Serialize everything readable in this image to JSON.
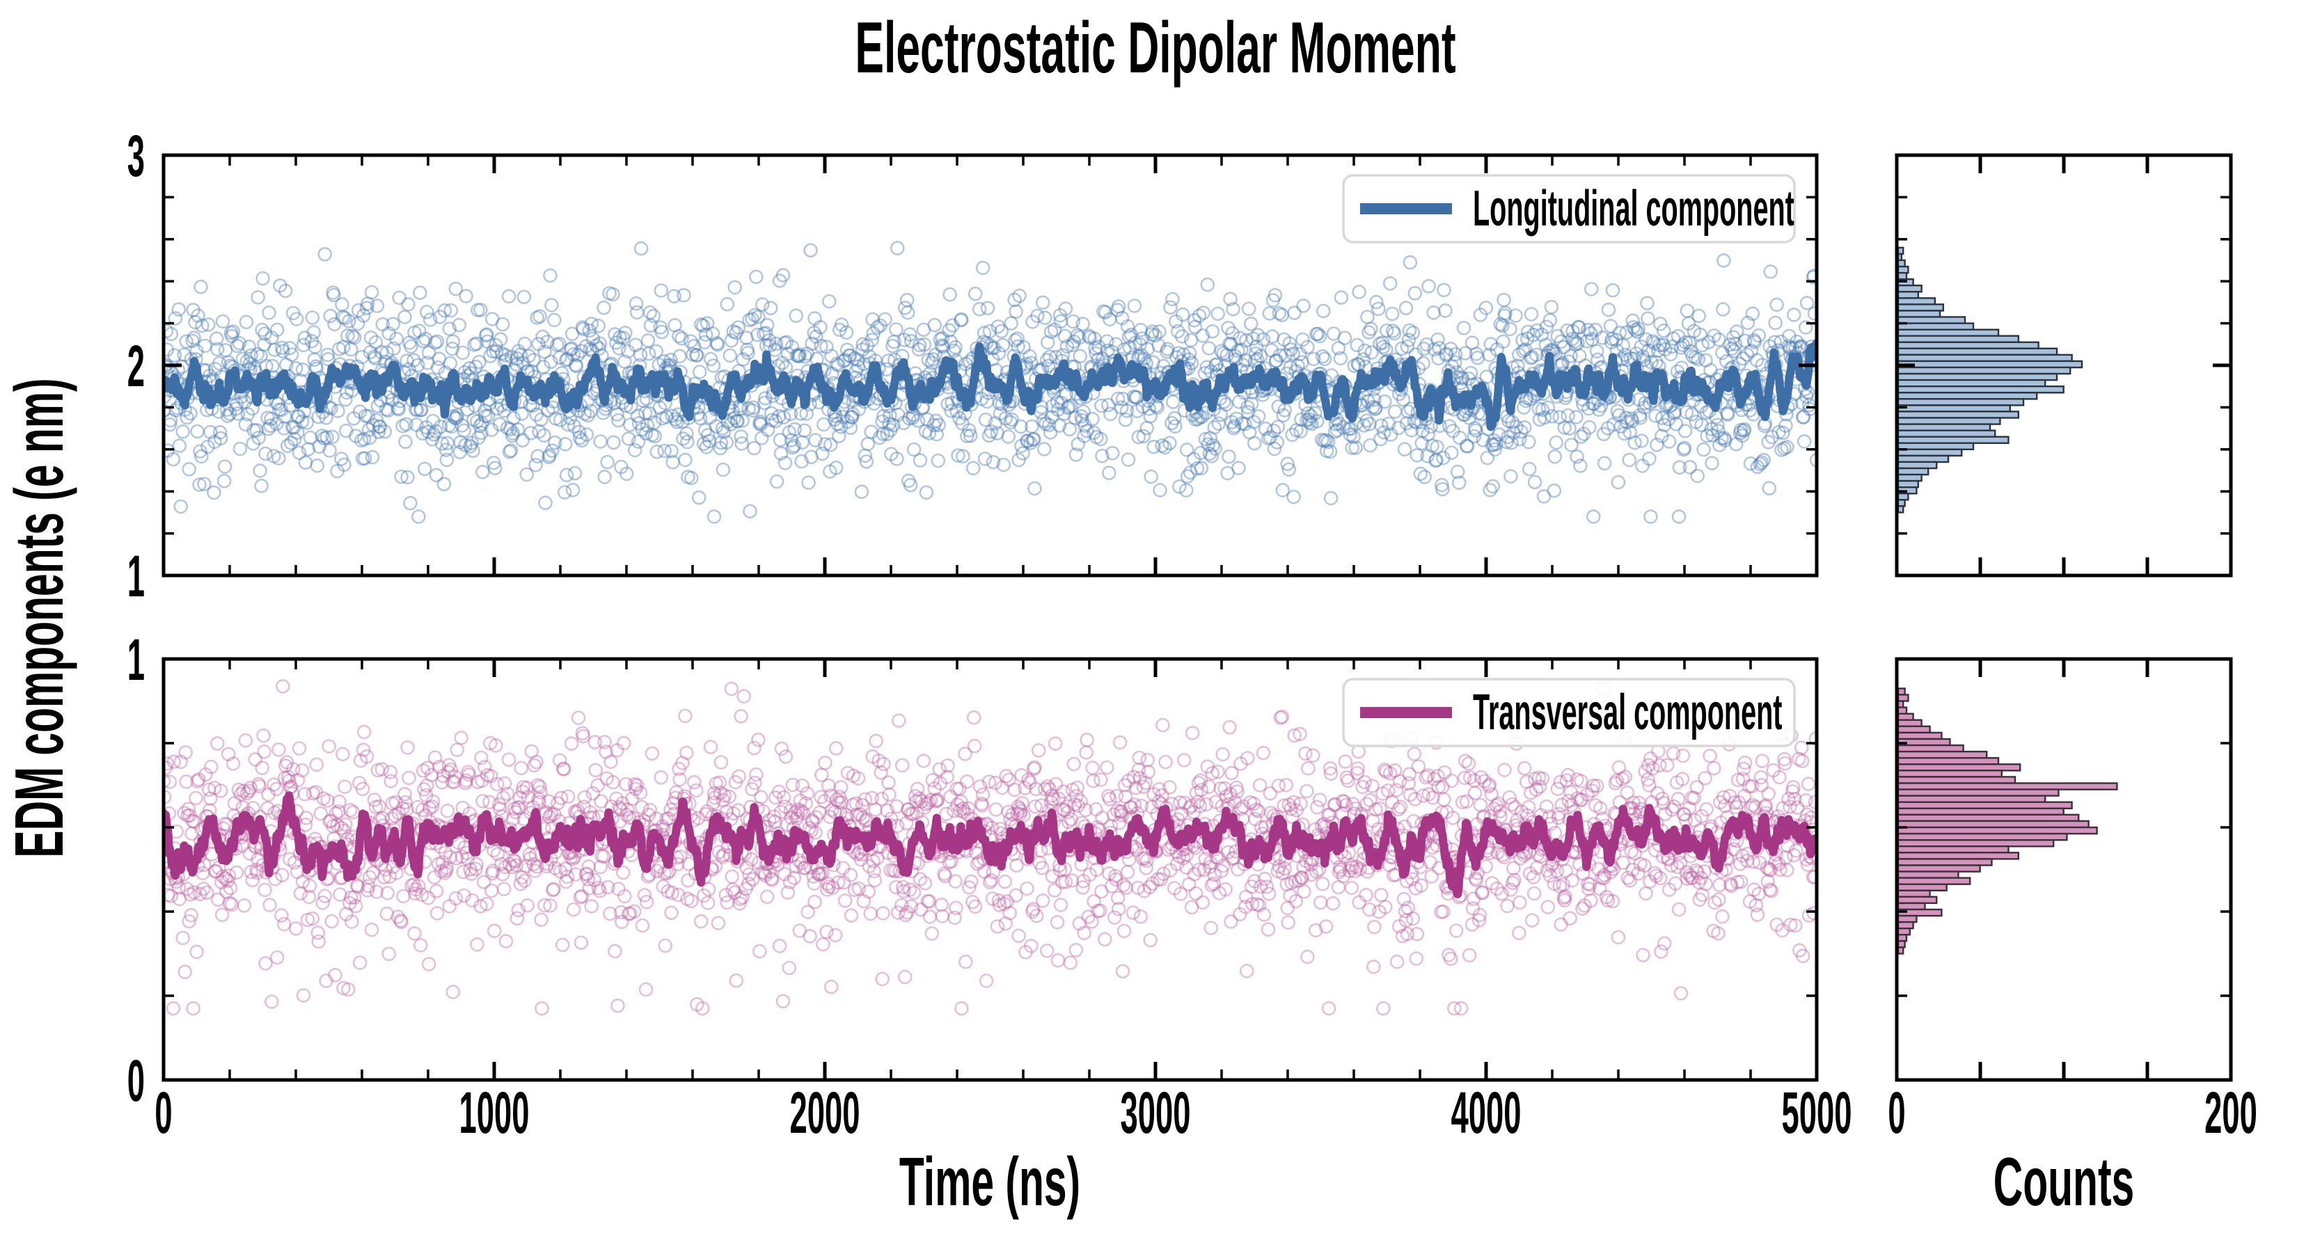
{
  "title": "Electrostatic Dipolar Moment",
  "axes": {
    "ylabel": "EDM components (e nm)",
    "time_xlabel": "Time (ns)",
    "counts_xlabel": "Counts"
  },
  "legend": {
    "longitudinal": "Longitudinal component",
    "transversal": "Transversal component"
  },
  "colors": {
    "longitudinal_line": "#3d6fa6",
    "longitudinal_scatter": "#4a7cb2",
    "longitudinal_hist_fill": "#a9c0da",
    "longitudinal_hist_edge": "#2b3340",
    "transversal_line": "#a63787",
    "transversal_scatter": "#bc62a2",
    "transversal_hist_fill": "#d492bd",
    "transversal_hist_edge": "#39313a",
    "legend_border": "#d9d9d9",
    "axis": "#000000",
    "background": "#ffffff"
  },
  "chart_data": [
    {
      "type": "scatter",
      "name": "Longitudinal component",
      "panel": "top",
      "xlabel": "Time (ns)",
      "x_range": [
        0,
        5000
      ],
      "x_ticks": [
        0,
        1000,
        2000,
        3000,
        4000,
        5000
      ],
      "x_minor_step": 200,
      "ylabel": "EDM components (e nm)",
      "y_range": [
        1,
        3
      ],
      "y_ticks": [
        1,
        2,
        3
      ],
      "y_minor_step": 0.2,
      "n_points": 2400,
      "mean": 1.9,
      "std": 0.205,
      "outlier_fraction": 0,
      "outlier_depth": 0,
      "y_extent": [
        1.28,
        2.58
      ],
      "trend_line": "running mean of scatter, window ~13 samples, fluctuates between ~1.7 and ~2.1",
      "marker": "open-circle",
      "seed": 20
    },
    {
      "type": "histogram",
      "name": "Longitudinal component counts",
      "panel": "top-right",
      "orientation": "horizontal",
      "xlabel": "Counts",
      "x_range": [
        0,
        200
      ],
      "x_ticks": [
        0,
        50,
        100,
        150,
        200
      ],
      "x_tick_labels": [
        "0",
        "",
        "",
        "",
        "200"
      ],
      "bin_top": 2.56,
      "bin_step": 0.03,
      "counts": [
        3,
        2,
        4,
        6,
        5,
        9,
        14,
        12,
        22,
        27,
        25,
        40,
        45,
        60,
        72,
        84,
        95,
        104,
        110,
        103,
        95,
        88,
        99,
        83,
        75,
        67,
        72,
        61,
        55,
        58,
        66,
        45,
        38,
        30,
        23,
        18,
        14,
        12,
        11,
        6,
        4,
        3
      ]
    },
    {
      "type": "scatter",
      "name": "Transversal component",
      "panel": "bottom",
      "xlabel": "Time (ns)",
      "x_range": [
        0,
        5000
      ],
      "x_ticks": [
        0,
        1000,
        2000,
        3000,
        4000,
        5000
      ],
      "x_minor_step": 200,
      "ylabel": "EDM components (e nm)",
      "y_range": [
        0,
        1
      ],
      "y_ticks": [
        0,
        1
      ],
      "y_minor_step": 0.2,
      "n_points": 2400,
      "mean": 0.578,
      "std": 0.105,
      "outlier_fraction": 0.035,
      "outlier_depth": 0.3,
      "y_extent": [
        0.17,
        0.935
      ],
      "trend_line": "running mean of scatter, window ~13 samples, fluctuates between ~0.45 and ~0.72",
      "marker": "open-circle",
      "seed": 77
    },
    {
      "type": "histogram",
      "name": "Transversal component counts",
      "panel": "bottom-right",
      "orientation": "horizontal",
      "xlabel": "Counts",
      "x_range": [
        0,
        200
      ],
      "x_ticks": [
        0,
        50,
        100,
        150,
        200
      ],
      "x_tick_labels": [
        "0",
        "",
        "",
        "",
        "200"
      ],
      "bin_top": 0.93,
      "bin_step": 0.015,
      "counts": [
        4,
        6,
        3,
        5,
        9,
        14,
        19,
        26,
        31,
        39,
        53,
        60,
        73,
        62,
        70,
        131,
        96,
        88,
        104,
        99,
        108,
        114,
        119,
        101,
        93,
        66,
        72,
        56,
        49,
        36,
        43,
        29,
        19,
        23,
        16,
        26,
        11,
        9,
        7,
        5,
        4,
        3
      ]
    }
  ]
}
